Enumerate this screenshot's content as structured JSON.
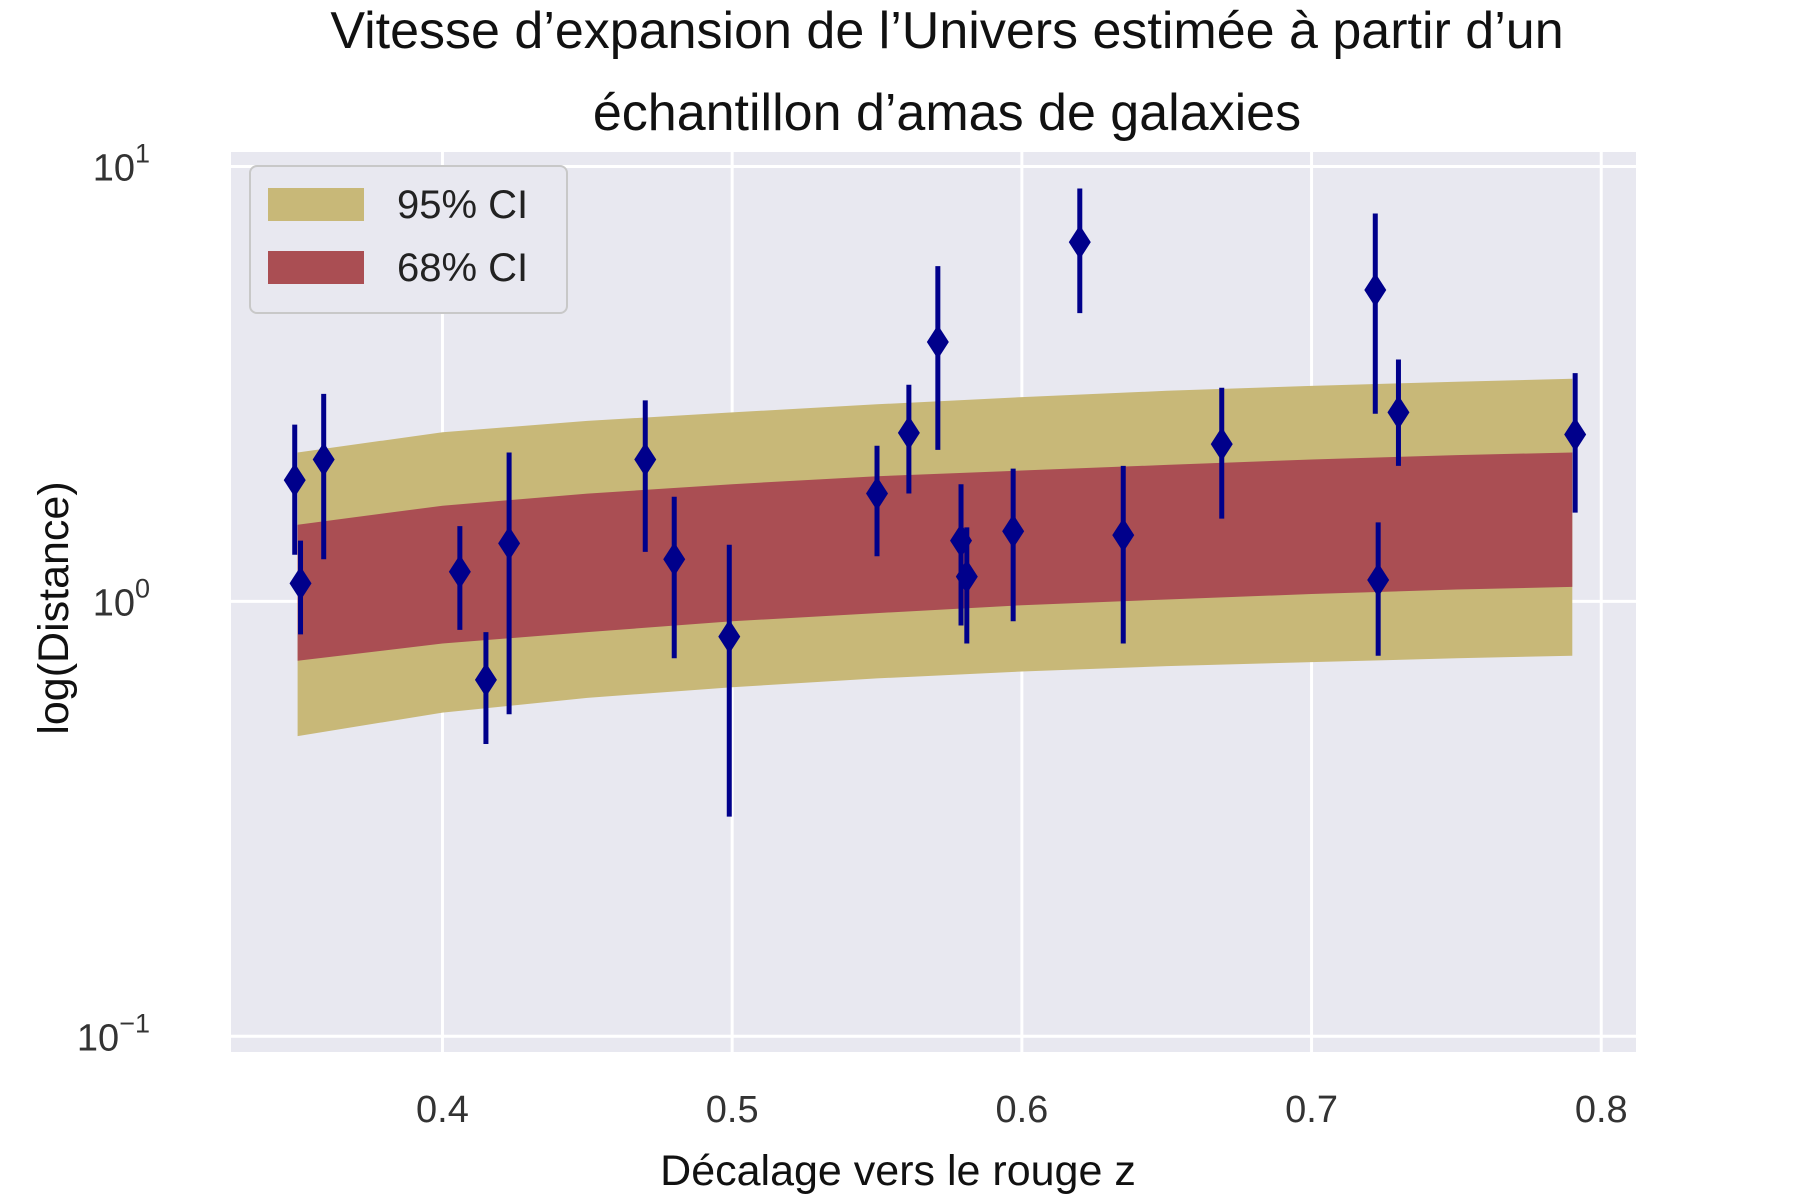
{
  "chart_data": {
    "type": "scatter",
    "title": "Vitesse d’expansion de l’Univers estimée à partir d’un échantillon d’amas de galaxies",
    "title_lines": [
      "Vitesse d’expansion de l’Univers estimée à partir d’un",
      "échantillon d’amas de galaxies"
    ],
    "xlabel": "Décalage vers le rouge z",
    "ylabel": "log(Distance)",
    "y_scale": "log",
    "xlim": [
      0.327,
      0.812
    ],
    "ylim": [
      0.092,
      10.8
    ],
    "x_ticks": [
      0.4,
      0.5,
      0.6,
      0.7,
      0.8
    ],
    "x_tick_labels": [
      "0.4",
      "0.5",
      "0.6",
      "0.7",
      "0.8"
    ],
    "y_ticks": [
      0.1,
      1,
      10
    ],
    "y_tick_labels": [
      {
        "base": "10",
        "exp": "−1"
      },
      {
        "base": "10",
        "exp": "0"
      },
      {
        "base": "10",
        "exp": "1"
      }
    ],
    "grid": true,
    "legend_position": "top-left",
    "legend": [
      {
        "label": "95% CI",
        "color": "#c8b878"
      },
      {
        "label": "68% CI",
        "color": "#aa4e53"
      }
    ],
    "colors": {
      "background": "#e8e8f0",
      "grid": "#ffffff",
      "points": "#00008b",
      "ci95": "#c8b878",
      "ci68": "#aa4e53"
    },
    "band_95": {
      "x": [
        0.35,
        0.4,
        0.45,
        0.5,
        0.55,
        0.6,
        0.65,
        0.7,
        0.75,
        0.79
      ],
      "lower": [
        0.49,
        0.555,
        0.6,
        0.635,
        0.665,
        0.69,
        0.71,
        0.725,
        0.74,
        0.75
      ],
      "upper": [
        2.2,
        2.45,
        2.6,
        2.72,
        2.84,
        2.95,
        3.05,
        3.13,
        3.2,
        3.25
      ]
    },
    "band_68": {
      "x": [
        0.35,
        0.4,
        0.45,
        0.5,
        0.55,
        0.6,
        0.65,
        0.7,
        0.75,
        0.79
      ],
      "lower": [
        0.73,
        0.8,
        0.85,
        0.9,
        0.94,
        0.98,
        1.01,
        1.04,
        1.065,
        1.08
      ],
      "upper": [
        1.5,
        1.66,
        1.77,
        1.86,
        1.94,
        2.0,
        2.06,
        2.12,
        2.17,
        2.2
      ]
    },
    "series": [
      {
        "marker": "diamond",
        "points": [
          {
            "x": 0.349,
            "y": 1.9,
            "ylo": 1.28,
            "yhi": 2.55
          },
          {
            "x": 0.351,
            "y": 1.1,
            "ylo": 0.84,
            "yhi": 1.38
          },
          {
            "x": 0.359,
            "y": 2.12,
            "ylo": 1.25,
            "yhi": 3.0
          },
          {
            "x": 0.406,
            "y": 1.17,
            "ylo": 0.86,
            "yhi": 1.49
          },
          {
            "x": 0.415,
            "y": 0.66,
            "ylo": 0.47,
            "yhi": 0.85
          },
          {
            "x": 0.423,
            "y": 1.36,
            "ylo": 0.55,
            "yhi": 2.2
          },
          {
            "x": 0.47,
            "y": 2.12,
            "ylo": 1.3,
            "yhi": 2.9
          },
          {
            "x": 0.48,
            "y": 1.25,
            "ylo": 0.74,
            "yhi": 1.74
          },
          {
            "x": 0.499,
            "y": 0.83,
            "ylo": 0.32,
            "yhi": 1.35
          },
          {
            "x": 0.55,
            "y": 1.77,
            "ylo": 1.27,
            "yhi": 2.28
          },
          {
            "x": 0.561,
            "y": 2.44,
            "ylo": 1.77,
            "yhi": 3.15
          },
          {
            "x": 0.571,
            "y": 3.95,
            "ylo": 2.23,
            "yhi": 5.9
          },
          {
            "x": 0.579,
            "y": 1.38,
            "ylo": 0.88,
            "yhi": 1.86
          },
          {
            "x": 0.581,
            "y": 1.14,
            "ylo": 0.8,
            "yhi": 1.48
          },
          {
            "x": 0.597,
            "y": 1.45,
            "ylo": 0.9,
            "yhi": 2.02
          },
          {
            "x": 0.62,
            "y": 6.7,
            "ylo": 4.6,
            "yhi": 8.9
          },
          {
            "x": 0.635,
            "y": 1.42,
            "ylo": 0.8,
            "yhi": 2.05
          },
          {
            "x": 0.669,
            "y": 2.3,
            "ylo": 1.55,
            "yhi": 3.1
          },
          {
            "x": 0.722,
            "y": 5.2,
            "ylo": 2.7,
            "yhi": 7.8
          },
          {
            "x": 0.723,
            "y": 1.12,
            "ylo": 0.75,
            "yhi": 1.52
          },
          {
            "x": 0.73,
            "y": 2.72,
            "ylo": 2.05,
            "yhi": 3.6
          },
          {
            "x": 0.791,
            "y": 2.42,
            "ylo": 1.6,
            "yhi": 3.35
          }
        ]
      }
    ]
  }
}
